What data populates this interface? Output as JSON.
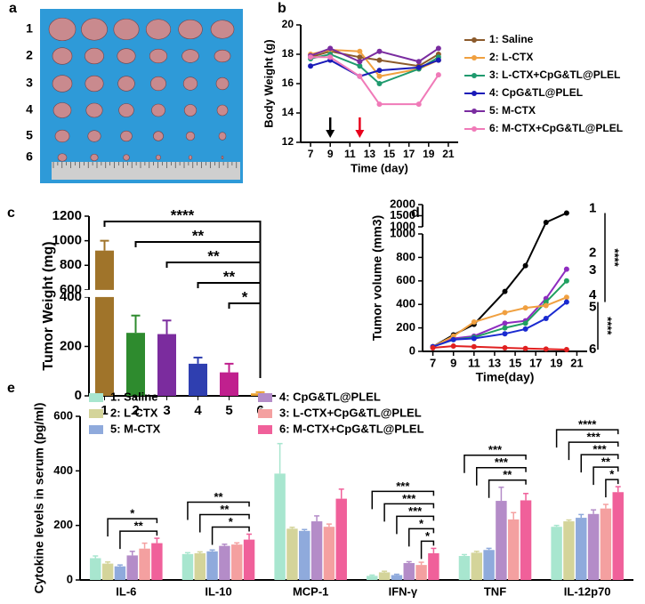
{
  "chart_data": [
    {
      "panel": "a",
      "type": "image",
      "row_labels": [
        "1",
        "2",
        "3",
        "4",
        "5",
        "6"
      ]
    },
    {
      "panel": "b",
      "type": "line",
      "x_label": "Time (day)",
      "y_label": "Body Weight (g)",
      "x": [
        7,
        9,
        12,
        14,
        18,
        20
      ],
      "xlim": [
        6,
        22
      ],
      "xticks": [
        7,
        9,
        11,
        13,
        15,
        17,
        19,
        21
      ],
      "ylim": [
        12,
        20
      ],
      "yticks": [
        12,
        14,
        16,
        18,
        20
      ],
      "legend": "right",
      "arrows": [
        {
          "x": 9,
          "color": "#000000"
        },
        {
          "x": 12,
          "color": "#e8001c"
        }
      ],
      "series": [
        {
          "name": "1: Saline",
          "color": "#8b5a2b",
          "values": [
            17.8,
            18.2,
            17.8,
            17.6,
            17.2,
            18.0
          ]
        },
        {
          "name": "2: L-CTX",
          "color": "#f0a040",
          "values": [
            18.0,
            18.3,
            18.2,
            16.5,
            17.0,
            17.6
          ]
        },
        {
          "name": "3: L-CTX+CpG&TL@PLEL",
          "color": "#1f9a6e",
          "values": [
            17.7,
            18.0,
            17.2,
            16.0,
            17.0,
            17.8
          ]
        },
        {
          "name": "4: CpG&TL@PLEL",
          "color": "#1a1ab8",
          "values": [
            17.2,
            17.6,
            16.5,
            16.9,
            17.1,
            17.6
          ]
        },
        {
          "name": "5: M-CTX",
          "color": "#7a2ca0",
          "values": [
            17.9,
            18.4,
            17.5,
            18.2,
            17.5,
            18.4
          ]
        },
        {
          "name": "6: M-CTX+CpG&TL@PLEL",
          "color": "#f07ab8",
          "values": [
            17.8,
            17.8,
            16.5,
            14.6,
            14.6,
            16.6
          ]
        }
      ]
    },
    {
      "panel": "c",
      "type": "bar",
      "y_label": "Tumor Weight (mg)",
      "categories": [
        "1",
        "2",
        "3",
        "4",
        "5",
        "6"
      ],
      "values": [
        920,
        255,
        250,
        130,
        95,
        10
      ],
      "errors": [
        80,
        70,
        55,
        25,
        35,
        5
      ],
      "colors": [
        "#a0742a",
        "#2e8b2e",
        "#7b2c9e",
        "#2f3fb0",
        "#c0208e",
        "#e8a030"
      ],
      "ylim": [
        0,
        1200
      ],
      "ybreak": [
        400,
        600
      ],
      "yticks": [
        0,
        200,
        400
      ],
      "yticks_upper": [
        600,
        800,
        1000,
        1200
      ],
      "brackets": [
        {
          "label": "****",
          "from": 0
        },
        {
          "label": "**",
          "from": 1
        },
        {
          "label": "**",
          "from": 2
        },
        {
          "label": "**",
          "from": 3
        },
        {
          "label": "*",
          "from": 4
        }
      ]
    },
    {
      "panel": "d",
      "type": "line",
      "x_label": "Time(day)",
      "y_label": "Tumor volume (mm3)",
      "x": [
        7,
        9,
        11,
        14,
        16,
        18,
        20
      ],
      "xlim": [
        6,
        22
      ],
      "xticks": [
        7,
        9,
        11,
        13,
        15,
        17,
        19,
        21
      ],
      "ylim": [
        0,
        2000
      ],
      "ybreak": [
        1000,
        1000
      ],
      "yticks": [
        0,
        200,
        400,
        600,
        800,
        1000
      ],
      "yticks_upper": [
        1000,
        1500,
        2000
      ],
      "end_labels": true,
      "brackets": [
        {
          "label": "****",
          "from": 0,
          "to": 4
        },
        {
          "label": "****",
          "from": 4,
          "to": 5
        }
      ],
      "series": [
        {
          "name": "1",
          "color": "#000000",
          "values": [
            40,
            140,
            230,
            510,
            730,
            1200,
            1620
          ]
        },
        {
          "name": "2",
          "color": "#8e2cc0",
          "values": [
            40,
            110,
            130,
            240,
            260,
            450,
            700
          ]
        },
        {
          "name": "3",
          "color": "#20a060",
          "values": [
            40,
            100,
            120,
            200,
            240,
            420,
            600
          ]
        },
        {
          "name": "4",
          "color": "#f0a040",
          "values": [
            40,
            130,
            250,
            330,
            370,
            390,
            460
          ]
        },
        {
          "name": "5",
          "color": "#1a2ad0",
          "values": [
            40,
            100,
            110,
            150,
            190,
            280,
            420
          ]
        },
        {
          "name": "6",
          "color": "#e02020",
          "values": [
            30,
            45,
            40,
            30,
            25,
            20,
            15
          ]
        }
      ]
    },
    {
      "panel": "e",
      "type": "grouped_bar",
      "y_label": "Cytokine levels in serum (pg/ml)",
      "categories": [
        "IL-6",
        "IL-10",
        "MCP-1",
        "IFN-γ",
        "TNF",
        "IL-12p70"
      ],
      "ylim": [
        0,
        600
      ],
      "yticks": [
        0,
        200,
        400,
        600
      ],
      "series": [
        {
          "name": "1: Saline",
          "color": "#a8e6cf",
          "values": [
            80,
            95,
            390,
            15,
            88,
            195
          ],
          "errors": [
            8,
            5,
            110,
            3,
            5,
            5
          ]
        },
        {
          "name": "2: L-CTX",
          "color": "#d4d49a",
          "values": [
            60,
            98,
            188,
            28,
            100,
            215
          ],
          "errors": [
            6,
            5,
            5,
            4,
            5,
            5
          ]
        },
        {
          "name": "5: M-CTX",
          "color": "#8faadc",
          "values": [
            50,
            105,
            180,
            18,
            110,
            228
          ],
          "errors": [
            5,
            5,
            5,
            3,
            6,
            12
          ]
        },
        {
          "name": "4: CpG&TL@PLEL",
          "color": "#b48cc8",
          "values": [
            90,
            125,
            215,
            62,
            290,
            242
          ],
          "errors": [
            15,
            6,
            20,
            5,
            50,
            15
          ]
        },
        {
          "name": "3: L-CTX+CpG&TL@PLEL",
          "color": "#f4a0a0",
          "values": [
            115,
            130,
            195,
            55,
            222,
            262
          ],
          "errors": [
            20,
            6,
            10,
            10,
            25,
            15
          ]
        },
        {
          "name": "6: M-CTX+CpG&TL@PLEL",
          "color": "#f0609a",
          "values": [
            135,
            148,
            298,
            98,
            292,
            322
          ],
          "errors": [
            18,
            20,
            35,
            18,
            25,
            20
          ]
        }
      ],
      "brackets": [
        [
          {
            "label": "*",
            "from": 1
          },
          {
            "label": "**",
            "from": 2
          }
        ],
        [
          {
            "label": "**",
            "from": 0
          },
          {
            "label": "**",
            "from": 1
          },
          {
            "label": "*",
            "from": 2
          }
        ],
        [],
        [
          {
            "label": "***",
            "from": 0
          },
          {
            "label": "***",
            "from": 1
          },
          {
            "label": "***",
            "from": 2
          },
          {
            "label": "*",
            "from": 3
          },
          {
            "label": "*",
            "from": 4
          }
        ],
        [
          {
            "label": "***",
            "from": 0
          },
          {
            "label": "***",
            "from": 1
          },
          {
            "label": "**",
            "from": 2
          }
        ],
        [
          {
            "label": "****",
            "from": 0
          },
          {
            "label": "***",
            "from": 1
          },
          {
            "label": "***",
            "from": 2
          },
          {
            "label": "**",
            "from": 3
          },
          {
            "label": "*",
            "from": 4
          }
        ]
      ]
    }
  ]
}
